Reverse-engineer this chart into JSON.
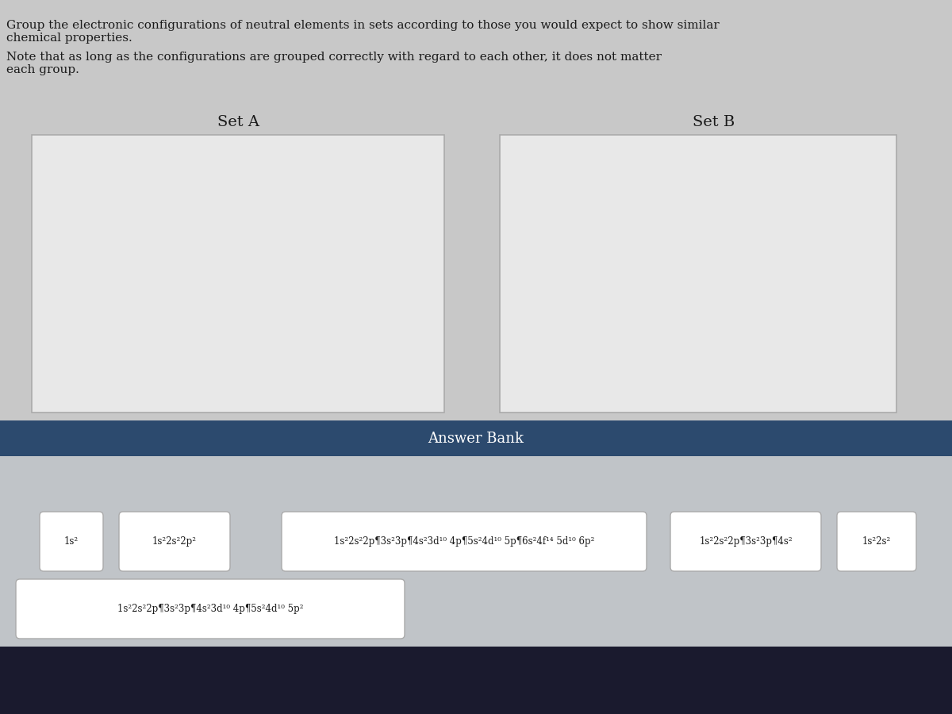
{
  "title_text": "Group the electronic configurations of neutral elements in sets according to those you would expect to show similar\nchemical properties.",
  "note_text": "Note that as long as the configurations are grouped correctly with regard to each other, it does not matter\neach group.",
  "set_a_label": "Set A",
  "set_b_label": "Set B",
  "answer_bank_label": "Answer Bank",
  "answer_bank_items": [
    "1s²",
    "1s²2s²2p²",
    "1s²2s²2p¶3s²3p¶4s²3d¹⁰ 4p¶5s²4d¹⁰ 5p¶6s²4f¹⁴ 5d¹⁰ 6p²",
    "1s²2s²2p¶3s²3p¶4s²",
    "1s²2s²",
    "1s²2s²2p¶3s²3p¶4s²3d¹⁰ 4p¶5s²4d¹⁰ 5p²"
  ],
  "bg_color": "#d0d0d0",
  "page_bg": "#c8c8c8",
  "answer_bank_header_color": "#2c4a6e",
  "answer_bank_bg": "#c0c4c8",
  "box_color": "#ffffff",
  "box_border": "#aaaaaa",
  "set_box_bg": "#e8e8e8",
  "text_color": "#1a1a1a",
  "header_text_color": "#ffffff"
}
